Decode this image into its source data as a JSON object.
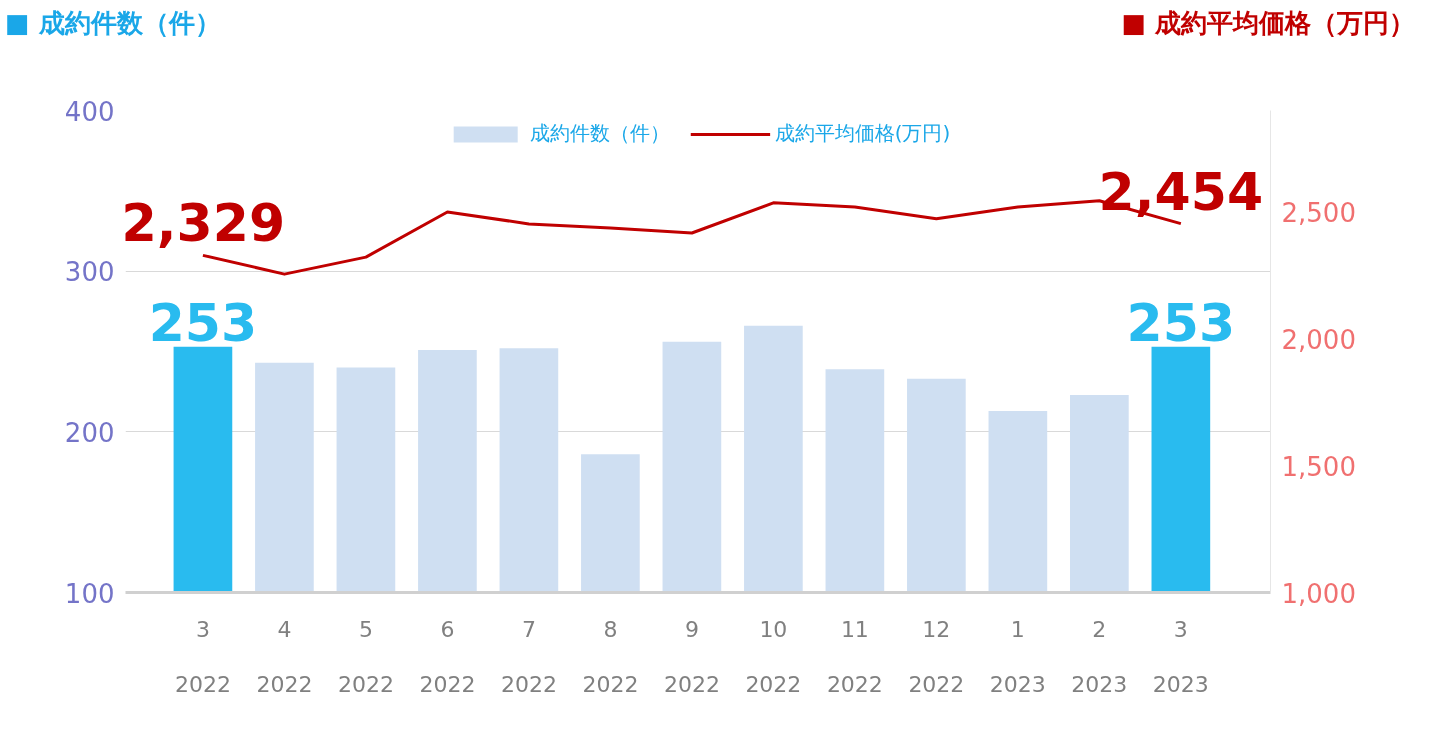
{
  "chart_data": {
    "type": "bar",
    "ylabel": "■ 成約件数（件）",
    "y2label": "■ 成約平均価格（万円）",
    "categories": [
      "3\n2022",
      "4\n2022",
      "5\n2022",
      "6\n2022",
      "7\n2022",
      "8\n2022",
      "9\n2022",
      "10\n2022",
      "11\n2022",
      "12\n2022",
      "1\n2023",
      "2\n2023",
      "3\n2023"
    ],
    "series": [
      {
        "name": "成約件数（件）",
        "colors": [
          "#29bbef",
          "#cfdff2",
          "#cfdff2",
          "#cfdff2",
          "#cfdff2",
          "#cfdff2",
          "#cfdff2",
          "#cfdff2",
          "#cfdff2",
          "#cfdff2",
          "#cfdff2",
          "#cfdff2",
          "#29bbef"
        ],
        "values": [
          253,
          243,
          240,
          251,
          252,
          186,
          256,
          266,
          239,
          233,
          213,
          223,
          253
        ],
        "value_labels": [
          "253",
          null,
          null,
          null,
          null,
          null,
          null,
          null,
          null,
          null,
          null,
          null,
          "253"
        ]
      },
      {
        "name": "成約平均価格(万円)",
        "type": "line",
        "axis": "y2",
        "color": "#c00000",
        "values": [
          2329,
          2255,
          2322,
          2500,
          2453,
          2437,
          2417,
          2536,
          2520,
          2473,
          2520,
          2544,
          2454
        ],
        "value_labels": [
          "2,329",
          null,
          null,
          null,
          null,
          null,
          null,
          null,
          null,
          null,
          null,
          null,
          "2,454"
        ]
      }
    ],
    "ylim": [
      100,
      400
    ],
    "yticks": [
      100,
      200,
      300,
      400
    ],
    "y2lim": [
      1000,
      2900
    ],
    "y2ticks": [
      {
        "value": 1000,
        "label": "1,000"
      },
      {
        "value": 1500,
        "label": "1,500"
      },
      {
        "value": 2000,
        "label": "2,000"
      },
      {
        "value": 2500,
        "label": "2,500"
      }
    ],
    "grid": "y",
    "legend": "top"
  }
}
